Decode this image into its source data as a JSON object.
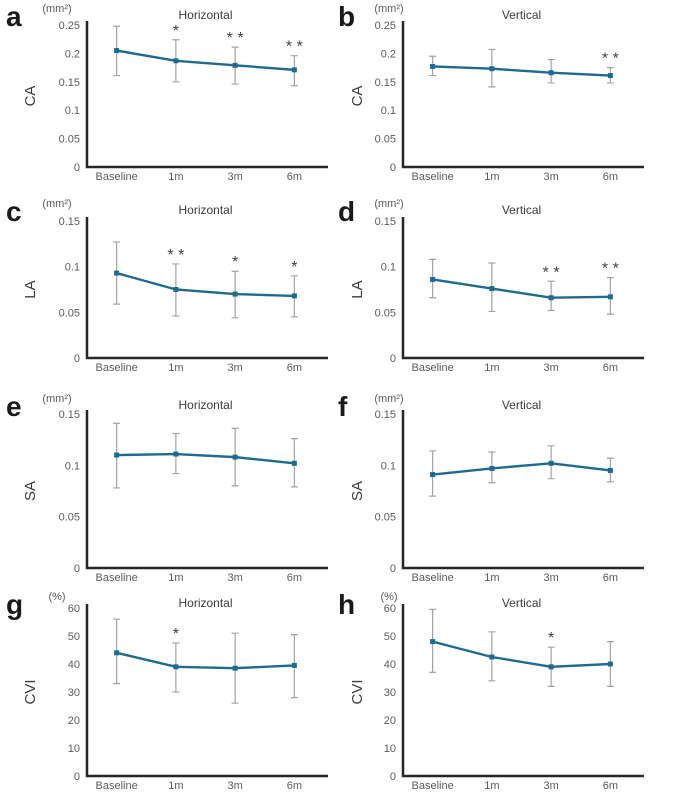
{
  "figure": {
    "background": "#ffffff",
    "colors": {
      "line": "#1f6a91",
      "error_bar": "#a3a3a3",
      "axis": "#262626",
      "tick_text": "#5b5b5b",
      "title_text": "#3b3b3b",
      "letter_text": "#1a1a1a",
      "significance_text": "#404040"
    },
    "column_titles": [
      "Horizontal",
      "Vertical"
    ],
    "row_measures": [
      "CA",
      "LA",
      "SA",
      "CVI"
    ]
  },
  "chart_data": [
    {
      "type": "line",
      "panel_letter": "a",
      "title": "Horizontal",
      "unit_label": "(mm²)",
      "ylabel": "CA",
      "xlabel": "",
      "categories": [
        "Baseline",
        "1m",
        "3m",
        "6m"
      ],
      "values": [
        0.205,
        0.187,
        0.179,
        0.171
      ],
      "error_low": [
        0.161,
        0.15,
        0.146,
        0.143
      ],
      "error_high": [
        0.248,
        0.224,
        0.211,
        0.196
      ],
      "significance": [
        "",
        "*",
        "* *",
        "* *"
      ],
      "ylim": [
        0,
        0.25
      ],
      "yticks": [
        0,
        0.05,
        0.1,
        0.15,
        0.2,
        0.25
      ],
      "ytick_labels": [
        "0",
        "0.05",
        "0.1",
        "0.15",
        "0.2",
        "0.25"
      ],
      "grid": false,
      "legend": false,
      "error_bars": true
    },
    {
      "type": "line",
      "panel_letter": "b",
      "title": "Vertical",
      "unit_label": "(mm²)",
      "ylabel": "CA",
      "xlabel": "",
      "categories": [
        "Baseline",
        "1m",
        "3m",
        "6m"
      ],
      "values": [
        0.177,
        0.173,
        0.166,
        0.161
      ],
      "error_low": [
        0.161,
        0.141,
        0.148,
        0.148
      ],
      "error_high": [
        0.195,
        0.207,
        0.189,
        0.175
      ],
      "significance": [
        "",
        "",
        "",
        "* *"
      ],
      "ylim": [
        0,
        0.25
      ],
      "yticks": [
        0,
        0.05,
        0.1,
        0.15,
        0.2,
        0.25
      ],
      "ytick_labels": [
        "0",
        "0.05",
        "0.1",
        "0.15",
        "0.2",
        "0.25"
      ],
      "grid": false,
      "legend": false,
      "error_bars": true
    },
    {
      "type": "line",
      "panel_letter": "c",
      "title": "Horizontal",
      "unit_label": "(mm²)",
      "ylabel": "LA",
      "xlabel": "",
      "categories": [
        "Baseline",
        "1m",
        "3m",
        "6m"
      ],
      "values": [
        0.093,
        0.075,
        0.07,
        0.068
      ],
      "error_low": [
        0.059,
        0.046,
        0.044,
        0.045
      ],
      "error_high": [
        0.127,
        0.103,
        0.095,
        0.09
      ],
      "significance": [
        "",
        "* *",
        "*",
        "*"
      ],
      "ylim": [
        0,
        0.15
      ],
      "yticks": [
        0,
        0.05,
        0.1,
        0.15
      ],
      "ytick_labels": [
        "0",
        "0.05",
        "0.1",
        "0.15"
      ],
      "grid": false,
      "legend": false,
      "error_bars": true
    },
    {
      "type": "line",
      "panel_letter": "d",
      "title": "Vertical",
      "unit_label": "(mm²)",
      "ylabel": "LA",
      "xlabel": "",
      "categories": [
        "Baseline",
        "1m",
        "3m",
        "6m"
      ],
      "values": [
        0.086,
        0.076,
        0.066,
        0.067
      ],
      "error_low": [
        0.066,
        0.051,
        0.052,
        0.048
      ],
      "error_high": [
        0.108,
        0.104,
        0.084,
        0.088
      ],
      "significance": [
        "",
        "",
        "* *",
        "* *"
      ],
      "ylim": [
        0,
        0.15
      ],
      "yticks": [
        0,
        0.05,
        0.1,
        0.15
      ],
      "ytick_labels": [
        "0",
        "0.05",
        "0.1",
        "0.15"
      ],
      "grid": false,
      "legend": false,
      "error_bars": true
    },
    {
      "type": "line",
      "panel_letter": "e",
      "title": "Horizontal",
      "unit_label": "(mm²)",
      "ylabel": "SA",
      "xlabel": "",
      "categories": [
        "Baseline",
        "1m",
        "3m",
        "6m"
      ],
      "values": [
        0.11,
        0.111,
        0.108,
        0.102
      ],
      "error_low": [
        0.078,
        0.092,
        0.08,
        0.079
      ],
      "error_high": [
        0.141,
        0.131,
        0.136,
        0.126
      ],
      "significance": [
        "",
        "",
        "",
        ""
      ],
      "ylim": [
        0,
        0.15
      ],
      "yticks": [
        0,
        0.05,
        0.1,
        0.15
      ],
      "ytick_labels": [
        "0",
        "0.05",
        "0.1",
        "0.15"
      ],
      "grid": false,
      "legend": false,
      "error_bars": true
    },
    {
      "type": "line",
      "panel_letter": "f",
      "title": "Vertical",
      "unit_label": "(mm²)",
      "ylabel": "SA",
      "xlabel": "",
      "categories": [
        "Baseline",
        "1m",
        "3m",
        "6m"
      ],
      "values": [
        0.091,
        0.097,
        0.102,
        0.095
      ],
      "error_low": [
        0.07,
        0.083,
        0.087,
        0.084
      ],
      "error_high": [
        0.114,
        0.113,
        0.119,
        0.107
      ],
      "significance": [
        "",
        "",
        "",
        ""
      ],
      "ylim": [
        0,
        0.15
      ],
      "yticks": [
        0,
        0.05,
        0.1,
        0.15
      ],
      "ytick_labels": [
        "0",
        "0.05",
        "0.1",
        "0.15"
      ],
      "grid": false,
      "legend": false,
      "error_bars": true
    },
    {
      "type": "line",
      "panel_letter": "g",
      "title": "Horizontal",
      "unit_label": "(%)",
      "ylabel": "CVI",
      "xlabel": "",
      "categories": [
        "Baseline",
        "1m",
        "3m",
        "6m"
      ],
      "values": [
        44,
        39,
        38.5,
        39.5
      ],
      "error_low": [
        33,
        30,
        26,
        28
      ],
      "error_high": [
        56,
        47.5,
        51,
        50.5
      ],
      "significance": [
        "",
        "*",
        "",
        ""
      ],
      "ylim": [
        0,
        60
      ],
      "yticks": [
        0,
        10,
        20,
        30,
        40,
        50,
        60
      ],
      "ytick_labels": [
        "0",
        "10",
        "20",
        "30",
        "40",
        "50",
        "60"
      ],
      "grid": false,
      "legend": false,
      "error_bars": true
    },
    {
      "type": "line",
      "panel_letter": "h",
      "title": "Vertical",
      "unit_label": "(%)",
      "ylabel": "CVI",
      "xlabel": "",
      "categories": [
        "Baseline",
        "1m",
        "3m",
        "6m"
      ],
      "values": [
        48,
        42.5,
        39,
        40
      ],
      "error_low": [
        37,
        34,
        32,
        32
      ],
      "error_high": [
        59.5,
        51.5,
        46,
        48
      ],
      "significance": [
        "",
        "",
        "*",
        ""
      ],
      "ylim": [
        0,
        60
      ],
      "yticks": [
        0,
        10,
        20,
        30,
        40,
        50,
        60
      ],
      "ytick_labels": [
        "0",
        "10",
        "20",
        "30",
        "40",
        "50",
        "60"
      ],
      "grid": false,
      "legend": false,
      "error_bars": true
    }
  ]
}
